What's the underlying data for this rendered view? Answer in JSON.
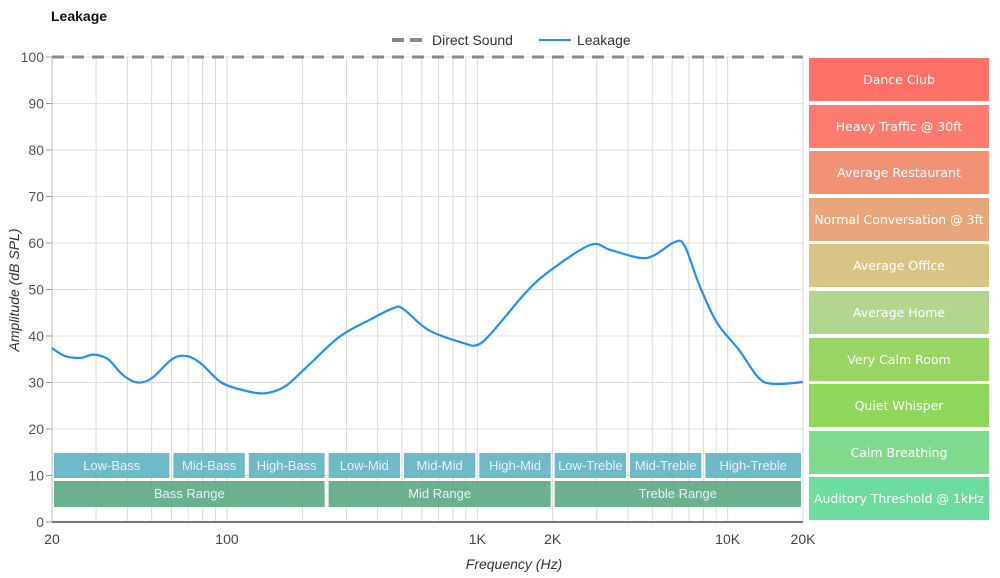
{
  "title": "Leakage",
  "legend": [
    {
      "label": "Direct Sound",
      "style": "dashed",
      "color": "#888888"
    },
    {
      "label": "Leakage",
      "style": "solid",
      "color": "#1e90ff"
    }
  ],
  "reference_levels": [
    {
      "label": "Dance Club",
      "color": "#ff7166"
    },
    {
      "label": "Heavy Traffic @ 30ft",
      "color": "#fc7b6c"
    },
    {
      "label": "Average Restaurant",
      "color": "#f19275"
    },
    {
      "label": "Normal Conversation @ 3ft",
      "color": "#e8a67a"
    },
    {
      "label": "Average Office",
      "color": "#d8c584"
    },
    {
      "label": "Average Home",
      "color": "#b2d68d"
    },
    {
      "label": "Very Calm Room",
      "color": "#99d562"
    },
    {
      "label": "Quiet Whisper",
      "color": "#8dd75a"
    },
    {
      "label": "Calm Breathing",
      "color": "#7edb8c"
    },
    {
      "label": "Auditory Threshold @ 1kHz",
      "color": "#6cdd9c"
    }
  ],
  "bands_top": [
    {
      "label": "Low-Bass",
      "from": 20,
      "to": 60
    },
    {
      "label": "Mid-Bass",
      "from": 60,
      "to": 120
    },
    {
      "label": "High-Bass",
      "from": 120,
      "to": 250
    },
    {
      "label": "Low-Mid",
      "from": 250,
      "to": 500
    },
    {
      "label": "Mid-Mid",
      "from": 500,
      "to": 1000
    },
    {
      "label": "High-Mid",
      "from": 1000,
      "to": 2000
    },
    {
      "label": "Low-Treble",
      "from": 2000,
      "to": 4000
    },
    {
      "label": "Mid-Treble",
      "from": 4000,
      "to": 8000
    },
    {
      "label": "High-Treble",
      "from": 8000,
      "to": 20000
    }
  ],
  "bands_bottom": [
    {
      "label": "Bass Range",
      "from": 20,
      "to": 250
    },
    {
      "label": "Mid Range",
      "from": 250,
      "to": 2000
    },
    {
      "label": "Treble Range",
      "from": 2000,
      "to": 20000
    }
  ],
  "chart_data": {
    "type": "line",
    "title": "Leakage",
    "xlabel": "Frequency (Hz)",
    "ylabel": "Amplitude (dB SPL)",
    "xscale": "log",
    "xlim": [
      20,
      20000
    ],
    "ylim": [
      0,
      100
    ],
    "xticks": [
      {
        "value": 20,
        "label": "20"
      },
      {
        "value": 100,
        "label": "100"
      },
      {
        "value": 1000,
        "label": "1K"
      },
      {
        "value": 2000,
        "label": "2K"
      },
      {
        "value": 10000,
        "label": "10K"
      },
      {
        "value": 20000,
        "label": "20K"
      }
    ],
    "yticks": [
      0,
      10,
      20,
      30,
      40,
      50,
      60,
      70,
      80,
      90,
      100
    ],
    "grid": true,
    "legend_position": "top",
    "series": [
      {
        "name": "Direct Sound",
        "style": "dashed",
        "points": [
          [
            20,
            100
          ],
          [
            20000,
            100
          ]
        ]
      },
      {
        "name": "Leakage",
        "style": "solid",
        "points": [
          [
            20,
            37.4
          ],
          [
            22.5,
            35.7
          ],
          [
            26.1,
            35.3
          ],
          [
            29.3,
            36
          ],
          [
            33.5,
            35
          ],
          [
            38.4,
            31.6
          ],
          [
            44,
            30
          ],
          [
            50.3,
            31
          ],
          [
            60.3,
            35
          ],
          [
            69,
            35.7
          ],
          [
            79,
            34
          ],
          [
            95,
            30
          ],
          [
            119,
            28.2
          ],
          [
            143,
            27.7
          ],
          [
            171,
            29.2
          ],
          [
            205,
            33
          ],
          [
            281,
            39.8
          ],
          [
            369,
            43.4
          ],
          [
            463,
            46
          ],
          [
            507,
            45.8
          ],
          [
            637,
            41.3
          ],
          [
            877,
            38.5
          ],
          [
            1004,
            38.1
          ],
          [
            1150,
            40.9
          ],
          [
            1570,
            49.5
          ],
          [
            1970,
            54.2
          ],
          [
            2830,
            59.6
          ],
          [
            3400,
            58.5
          ],
          [
            4460,
            56.8
          ],
          [
            5110,
            57.4
          ],
          [
            6140,
            60.2
          ],
          [
            6730,
            59.4
          ],
          [
            7700,
            51
          ],
          [
            9080,
            42.8
          ],
          [
            11100,
            37
          ],
          [
            13300,
            31
          ],
          [
            15300,
            29.7
          ],
          [
            20000,
            30.1
          ]
        ]
      }
    ]
  },
  "ytick_labels": [
    "0",
    "10",
    "20",
    "30",
    "40",
    "50",
    "60",
    "70",
    "80",
    "90",
    "100"
  ],
  "xlabel": "Frequency (Hz)",
  "ylabel": "Amplitude (dB SPL)"
}
